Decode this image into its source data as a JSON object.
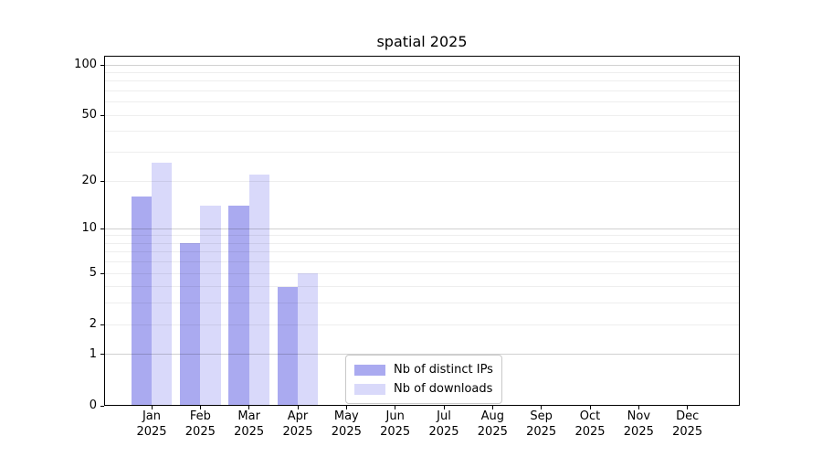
{
  "title": "spatial 2025",
  "chart_data": {
    "type": "bar",
    "title": "spatial 2025",
    "categories": [
      "Jan",
      "Feb",
      "Mar",
      "Apr",
      "May",
      "Jun",
      "Jul",
      "Aug",
      "Sep",
      "Oct",
      "Nov",
      "Dec"
    ],
    "x_tick_year": "2025",
    "series": [
      {
        "name": "Nb of distinct IPs",
        "color": "#aaaaf0",
        "values": [
          16,
          8,
          14,
          4,
          0,
          0,
          0,
          0,
          0,
          0,
          0,
          0
        ]
      },
      {
        "name": "Nb of downloads",
        "color": "#d9d9fa",
        "values": [
          26,
          14,
          22,
          5,
          0,
          0,
          0,
          0,
          0,
          0,
          0,
          0
        ]
      }
    ],
    "y_scale": "log1p",
    "y_ticks": [
      0,
      1,
      2,
      5,
      10,
      20,
      50,
      100
    ],
    "y_major_gridlines": [
      1,
      10,
      100
    ],
    "y_minor_gridlines": [
      2,
      3,
      4,
      5,
      6,
      7,
      8,
      9,
      20,
      30,
      40,
      50,
      60,
      70,
      80,
      90
    ],
    "ylim": [
      0,
      113.5
    ],
    "grid": "horizontal",
    "legend_position": "lower center"
  }
}
